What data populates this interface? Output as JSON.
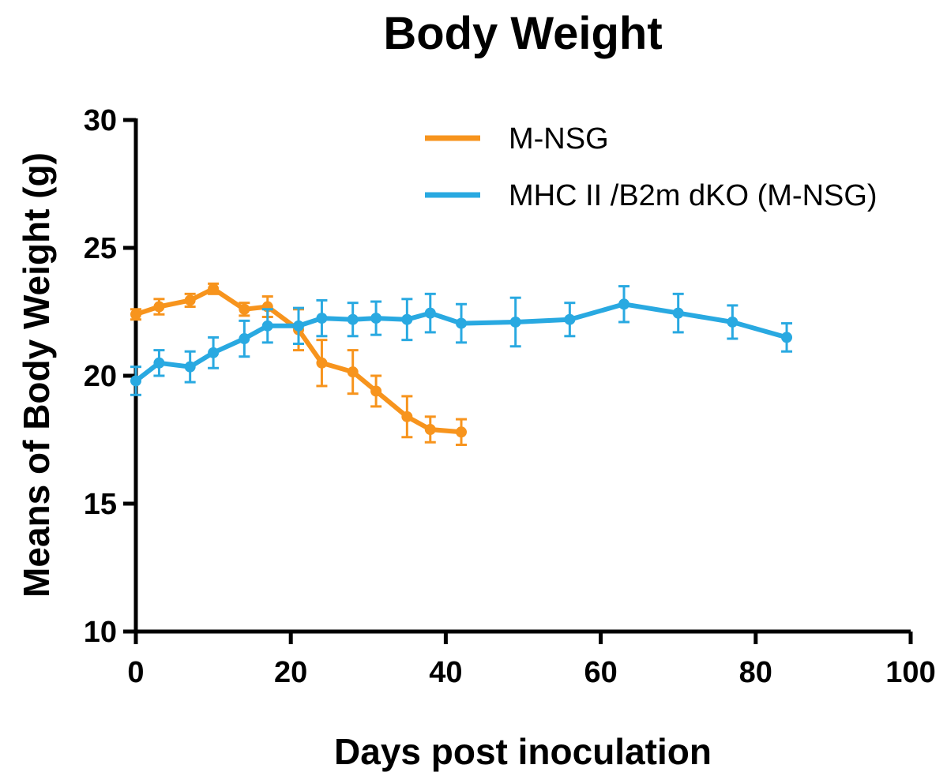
{
  "chart_data": {
    "type": "line",
    "title": "Body Weight",
    "xlabel": "Days post inoculation",
    "ylabel": "Means of Body Weight  (g)",
    "xlim": [
      0,
      100
    ],
    "ylim": [
      10,
      30
    ],
    "xticks": [
      0,
      20,
      40,
      60,
      80,
      100
    ],
    "yticks": [
      10,
      15,
      20,
      25,
      30
    ],
    "grid": false,
    "legend_position": "top-right",
    "series": [
      {
        "name": "M-NSG",
        "color": "#F7941D",
        "x": [
          0,
          3,
          7,
          10,
          14,
          17,
          21,
          24,
          28,
          31,
          35,
          38,
          42
        ],
        "y": [
          22.4,
          22.7,
          22.95,
          23.4,
          22.6,
          22.7,
          21.8,
          20.5,
          20.15,
          19.4,
          18.4,
          17.9,
          17.8
        ],
        "err": [
          0.2,
          0.3,
          0.25,
          0.2,
          0.25,
          0.4,
          0.8,
          0.9,
          0.85,
          0.6,
          0.8,
          0.5,
          0.5
        ]
      },
      {
        "name": "MHC II /B2m dKO (M-NSG)",
        "color": "#29A9E1",
        "x": [
          0,
          3,
          7,
          10,
          14,
          17,
          21,
          24,
          28,
          31,
          35,
          38,
          42,
          49,
          56,
          63,
          70,
          77,
          84
        ],
        "y": [
          19.8,
          20.5,
          20.35,
          20.9,
          21.45,
          21.95,
          21.95,
          22.25,
          22.2,
          22.25,
          22.2,
          22.45,
          22.05,
          22.1,
          22.2,
          22.8,
          22.45,
          22.1,
          21.5
        ],
        "err": [
          0.55,
          0.5,
          0.6,
          0.6,
          0.7,
          0.65,
          0.7,
          0.7,
          0.65,
          0.65,
          0.8,
          0.75,
          0.75,
          0.95,
          0.65,
          0.7,
          0.75,
          0.65,
          0.55
        ]
      }
    ]
  }
}
